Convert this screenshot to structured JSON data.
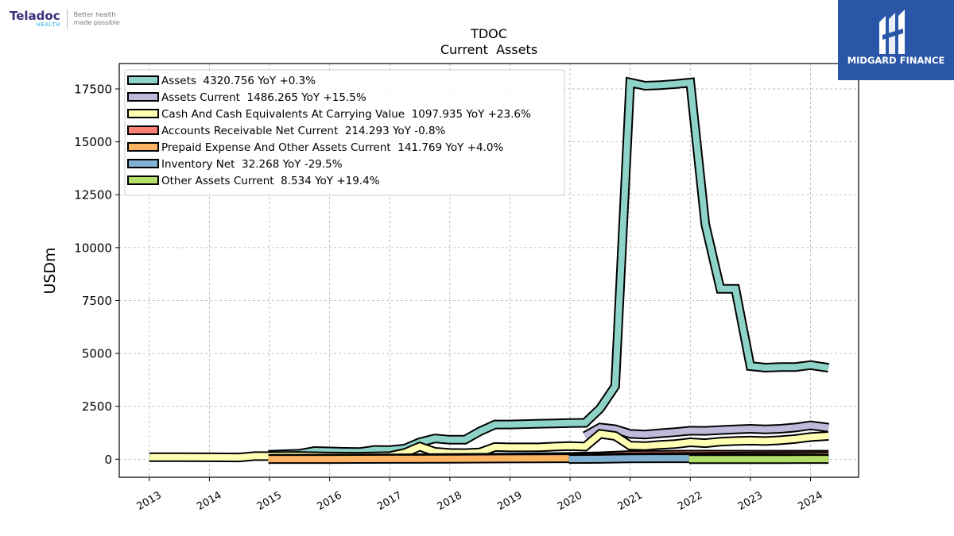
{
  "brand": {
    "name": "Teladoc",
    "sub": "HEALTH",
    "tagline_1": "Better health",
    "tagline_2": "made possible"
  },
  "watermark": {
    "name": "MIDGARD FINANCE",
    "color": "#2a56a8"
  },
  "chart_data": {
    "type": "area",
    "title": "TDOC",
    "subtitle": "Current  Assets",
    "ylabel": "USDm",
    "xlabel": "",
    "ylim": [
      -850,
      18700
    ],
    "xlim": [
      2012.5,
      2024.8
    ],
    "yticks": [
      0,
      2500,
      5000,
      7500,
      10000,
      12500,
      15000,
      17500
    ],
    "ytick_labels": [
      "0",
      "2500",
      "5000",
      "7500",
      "10000",
      "12500",
      "15000",
      "17500"
    ],
    "xticks": [
      2013,
      2014,
      2015,
      2016,
      2017,
      2018,
      2019,
      2020,
      2021,
      2022,
      2023,
      2024
    ],
    "xtick_labels": [
      "2013",
      "2014",
      "2015",
      "2016",
      "2017",
      "2018",
      "2019",
      "2020",
      "2021",
      "2022",
      "2023",
      "2024"
    ],
    "grid": true,
    "legend_position": "top-left",
    "series": [
      {
        "name": "Assets",
        "legend": "Assets  4320.756 YoY +0.3%",
        "color": "#8dd3c7",
        "points": [
          [
            2014.98,
            210
          ],
          [
            2015.5,
            260
          ],
          [
            2015.75,
            390
          ],
          [
            2016.0,
            370
          ],
          [
            2016.25,
            350
          ],
          [
            2016.5,
            340
          ],
          [
            2016.75,
            440
          ],
          [
            2017.0,
            430
          ],
          [
            2017.25,
            500
          ],
          [
            2017.5,
            800
          ],
          [
            2017.75,
            980
          ],
          [
            2018.0,
            920
          ],
          [
            2018.25,
            920
          ],
          [
            2018.5,
            1320
          ],
          [
            2018.75,
            1640
          ],
          [
            2019.0,
            1640
          ],
          [
            2019.25,
            1660
          ],
          [
            2019.5,
            1680
          ],
          [
            2019.75,
            1690
          ],
          [
            2020.0,
            1710
          ],
          [
            2020.25,
            1720
          ],
          [
            2020.5,
            2400
          ],
          [
            2020.75,
            3450
          ],
          [
            2021.0,
            17800
          ],
          [
            2021.25,
            17650
          ],
          [
            2021.5,
            17680
          ],
          [
            2021.75,
            17730
          ],
          [
            2022.0,
            17800
          ],
          [
            2022.25,
            11100
          ],
          [
            2022.5,
            8050
          ],
          [
            2022.75,
            8050
          ],
          [
            2023.0,
            4400
          ],
          [
            2023.25,
            4330
          ],
          [
            2023.5,
            4360
          ],
          [
            2023.75,
            4360
          ],
          [
            2024.0,
            4450
          ],
          [
            2024.3,
            4320
          ]
        ]
      },
      {
        "name": "Assets Current",
        "legend": "Assets Current  1486.265 YoY +15.5%",
        "color": "#bebada",
        "points": [
          [
            2020.25,
            1100
          ],
          [
            2020.5,
            1500
          ],
          [
            2020.75,
            1420
          ],
          [
            2021.0,
            1200
          ],
          [
            2021.25,
            1170
          ],
          [
            2021.5,
            1230
          ],
          [
            2021.75,
            1280
          ],
          [
            2022.0,
            1350
          ],
          [
            2022.25,
            1340
          ],
          [
            2022.5,
            1380
          ],
          [
            2022.75,
            1410
          ],
          [
            2023.0,
            1440
          ],
          [
            2023.25,
            1410
          ],
          [
            2023.5,
            1440
          ],
          [
            2023.75,
            1500
          ],
          [
            2024.0,
            1600
          ],
          [
            2024.3,
            1490
          ]
        ]
      },
      {
        "name": "Cash And Cash Equivalents At Carrying Value",
        "legend": "Cash And Cash Equivalents At Carrying Value  1097.935 YoY +23.6%",
        "color": "#ffffb3",
        "points": [
          [
            2013.0,
            100
          ],
          [
            2013.5,
            95
          ],
          [
            2014.0,
            90
          ],
          [
            2014.5,
            85
          ],
          [
            2014.75,
            150
          ],
          [
            2014.98,
            150
          ],
          [
            2015.5,
            160
          ],
          [
            2016.0,
            130
          ],
          [
            2016.5,
            120
          ],
          [
            2017.0,
            150
          ],
          [
            2017.25,
            300
          ],
          [
            2017.5,
            600
          ],
          [
            2017.75,
            350
          ],
          [
            2018.0,
            300
          ],
          [
            2018.25,
            290
          ],
          [
            2018.5,
            320
          ],
          [
            2018.75,
            580
          ],
          [
            2019.0,
            560
          ],
          [
            2019.25,
            560
          ],
          [
            2019.5,
            570
          ],
          [
            2019.75,
            600
          ],
          [
            2020.0,
            620
          ],
          [
            2020.25,
            600
          ],
          [
            2020.5,
            1200
          ],
          [
            2020.75,
            1100
          ],
          [
            2021.0,
            640
          ],
          [
            2021.25,
            620
          ],
          [
            2021.5,
            680
          ],
          [
            2021.75,
            720
          ],
          [
            2022.0,
            800
          ],
          [
            2022.25,
            760
          ],
          [
            2022.5,
            830
          ],
          [
            2022.75,
            860
          ],
          [
            2023.0,
            880
          ],
          [
            2023.25,
            860
          ],
          [
            2023.5,
            900
          ],
          [
            2023.75,
            960
          ],
          [
            2024.0,
            1050
          ],
          [
            2024.3,
            1100
          ]
        ]
      },
      {
        "name": "Accounts Receivable Net Current",
        "legend": "Accounts Receivable Net Current  214.293 YoY -0.8%",
        "color": "#fb8072",
        "points": [
          [
            2015.0,
            20
          ],
          [
            2016.0,
            30
          ],
          [
            2017.0,
            40
          ],
          [
            2018.0,
            60
          ],
          [
            2019.0,
            80
          ],
          [
            2020.0,
            110
          ],
          [
            2020.5,
            140
          ],
          [
            2021.0,
            200
          ],
          [
            2021.5,
            210
          ],
          [
            2022.0,
            220
          ],
          [
            2023.0,
            215
          ],
          [
            2024.0,
            216
          ],
          [
            2024.3,
            214
          ]
        ]
      },
      {
        "name": "Prepaid Expense And Other Assets Current",
        "legend": "Prepaid Expense And Other Assets Current  141.769 YoY +4.0%",
        "color": "#fdb462",
        "points": [
          [
            2014.98,
            8
          ],
          [
            2016.0,
            10
          ],
          [
            2017.0,
            15
          ],
          [
            2018.0,
            25
          ],
          [
            2019.0,
            35
          ],
          [
            2020.0,
            45
          ],
          [
            2021.0,
            90
          ],
          [
            2022.0,
            110
          ],
          [
            2023.0,
            130
          ],
          [
            2024.0,
            138
          ],
          [
            2024.3,
            142
          ]
        ]
      },
      {
        "name": "Inventory Net",
        "legend": "Inventory Net  32.268 YoY -29.5%",
        "color": "#80b1d3",
        "points": [
          [
            2019.98,
            8
          ],
          [
            2020.5,
            15
          ],
          [
            2021.0,
            40
          ],
          [
            2021.5,
            45
          ],
          [
            2022.0,
            45
          ],
          [
            2023.0,
            46
          ],
          [
            2024.0,
            40
          ],
          [
            2024.3,
            32
          ]
        ]
      },
      {
        "name": "Other Assets Current",
        "legend": "Other Assets Current  8.534 YoY +19.4%",
        "color": "#b3de69",
        "points": [
          [
            2021.98,
            5
          ],
          [
            2022.5,
            6
          ],
          [
            2023.0,
            7
          ],
          [
            2023.5,
            7
          ],
          [
            2024.0,
            8
          ],
          [
            2024.3,
            8.5
          ]
        ]
      }
    ]
  }
}
